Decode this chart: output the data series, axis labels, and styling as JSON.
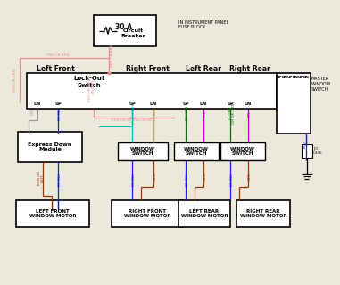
{
  "bg_color": "#ede8dc",
  "black": "#000000",
  "blue": "#1a1aee",
  "dkblu": "#0000aa",
  "red": "#cc0000",
  "pink": "#e89090",
  "tan": "#c8a060",
  "cyan": "#00bbbb",
  "green": "#007700",
  "magenta": "#bb00bb",
  "gray": "#999999",
  "brown": "#993300",
  "white": "#ffffff",
  "cb_label": "30 A",
  "cb_title": "Circuit\nBreaker",
  "fuse_block": "IN INSTRUMENT PANEL\nFUSE BLOCK",
  "master_label": "MASTER\nWINDOW\nSWITCH",
  "lockout_label": "Lock-Out\nSwitch",
  "express_label": "Express Down\nModule",
  "zone_labels": [
    "Left Front",
    "Right Front",
    "Left Rear",
    "Right Rear"
  ],
  "motor_labels": [
    "LEFT FRONT\nWINDOW MOTOR",
    "RIGHT FRONT\nWINDOW MOTOR",
    "LEFT REAR\nWINDOW MOTOR",
    "RIGHT REAR\nWINDOW MOTOR"
  ],
  "win_sw_label": "WINDOW\nSWITCH",
  "connector_label": "J/C\nC346"
}
